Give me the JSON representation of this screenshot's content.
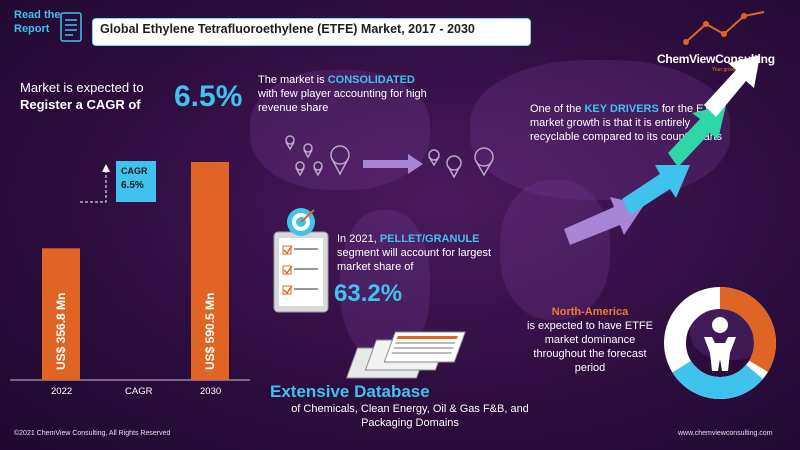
{
  "header": {
    "read_the": "Read the",
    "report": "Report",
    "title": "Global Ethylene Tetrafluoroethylene (ETFE) Market, 2017  - 2030"
  },
  "logo": {
    "name": "ChemViewConsulting",
    "tagline": "Your growth Catalyst"
  },
  "cagr_headline": {
    "line1": "Market is expected to",
    "line2": "Register a CAGR of",
    "value": "6.5%"
  },
  "chart_data": {
    "type": "bar",
    "categories": [
      "2022",
      "CAGR",
      "2030"
    ],
    "values": [
      356.8,
      null,
      590.5
    ],
    "value_labels": [
      "US$ 356.8 Mn",
      "",
      "US$ 590.5 Mn"
    ],
    "cagr_box": {
      "label": "CAGR",
      "value": "6.5%"
    },
    "bar_color": "#e06424",
    "box_color": "#3fc3ee"
  },
  "consolidated": {
    "pre": "The market is ",
    "highlight": "CONSOLIDATED",
    "post": "with few player accounting for high revenue share"
  },
  "pellet": {
    "pre": "In 2021, ",
    "highlight": "PELLET/GRANULE",
    "post": "segment will account for largest market share of",
    "value": "63.2%"
  },
  "database": {
    "title": "Extensive Database",
    "subtitle": "of Chemicals, Clean Energy, Oil & Gas F&B, and Packaging Domains"
  },
  "drivers": {
    "pre": "One of the ",
    "highlight": "KEY DRIVERS",
    "post": "for the ETFE market growth is that it is entirely recyclable compared to its counterparts"
  },
  "region": {
    "title": "North-America",
    "text": "is expected to have ETFE market dominance throughout the forecast period"
  },
  "footer": {
    "copyright": "©2021  ChemView  Consulting,  All Rights Reserved",
    "website": "www.chemviewconsulting.com"
  },
  "icons": [
    "report-icon",
    "logo-chart-icon",
    "location-pin-icon",
    "arrow-right-icon",
    "clipboard-icon",
    "target-icon",
    "database-icon",
    "growth-arrows-icon",
    "person-icon",
    "donut-icon"
  ],
  "colors": {
    "accent_blue": "#3fc3ee",
    "accent_orange": "#e06424",
    "background": "#2e0d3f"
  }
}
